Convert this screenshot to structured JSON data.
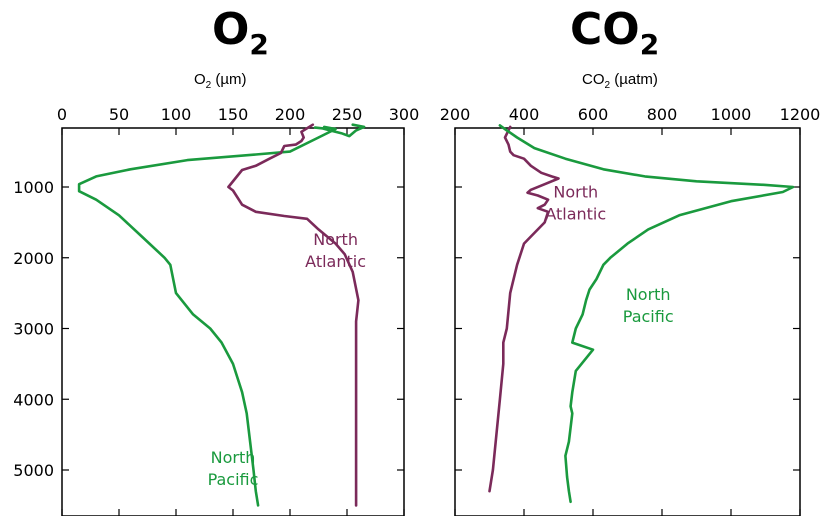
{
  "chart_data": [
    {
      "type": "line",
      "title_main": "O",
      "title_sub": "2",
      "xlabel_main": "O",
      "xlabel_sub": "2",
      "xlabel_rest": " (µm)",
      "xlim": [
        0,
        300
      ],
      "ylim": [
        0,
        5600
      ],
      "x_ticks": [
        0,
        50,
        100,
        150,
        200,
        250,
        300
      ],
      "y_ticks": [
        1000,
        2000,
        3000,
        4000,
        5000
      ],
      "y_inverted": true,
      "x_axis_position": "top",
      "series": [
        {
          "name_lines": [
            "North",
            "Pacific"
          ],
          "color": "#1a9a3e",
          "points": [
            [
              230,
              150
            ],
            [
              240,
              180
            ],
            [
              225,
              300
            ],
            [
              200,
              500
            ],
            [
              170,
              540
            ],
            [
              110,
              620
            ],
            [
              60,
              750
            ],
            [
              30,
              850
            ],
            [
              15,
              960
            ],
            [
              15,
              1060
            ],
            [
              30,
              1180
            ],
            [
              50,
              1400
            ],
            [
              70,
              1700
            ],
            [
              90,
              2000
            ],
            [
              95,
              2100
            ],
            [
              100,
              2500
            ],
            [
              115,
              2800
            ],
            [
              130,
              3000
            ],
            [
              140,
              3200
            ],
            [
              150,
              3500
            ],
            [
              158,
              3900
            ],
            [
              162,
              4200
            ],
            [
              165,
              4600
            ],
            [
              168,
              5000
            ],
            [
              170,
              5300
            ],
            [
              172,
              5500
            ]
          ]
        },
        {
          "name_lines": [
            "North",
            "Atlantic"
          ],
          "color": "#7b2a5a",
          "points": [
            [
              220,
              120
            ],
            [
              210,
              220
            ],
            [
              212,
              300
            ],
            [
              210,
              350
            ],
            [
              205,
              400
            ],
            [
              195,
              420
            ],
            [
              192,
              520
            ],
            [
              182,
              600
            ],
            [
              170,
              700
            ],
            [
              158,
              760
            ],
            [
              146,
              1000
            ],
            [
              150,
              1050
            ],
            [
              158,
              1250
            ],
            [
              170,
              1350
            ],
            [
              195,
              1410
            ],
            [
              215,
              1450
            ],
            [
              225,
              1600
            ],
            [
              240,
              1800
            ],
            [
              248,
              1950
            ],
            [
              255,
              2200
            ],
            [
              260,
              2600
            ],
            [
              258,
              2900
            ],
            [
              258,
              3500
            ],
            [
              258,
              4000
            ],
            [
              258,
              4500
            ],
            [
              258,
              5000
            ],
            [
              258,
              5500
            ]
          ]
        },
        {
          "name_lines": [],
          "color": "#1a9a3e",
          "points": [
            [
              255,
              120
            ],
            [
              265,
              150
            ],
            [
              258,
              200
            ],
            [
              252,
              280
            ],
            [
              245,
              240
            ],
            [
              235,
              200
            ],
            [
              228,
              170
            ],
            [
              222,
              160
            ]
          ]
        }
      ],
      "annotations": [
        {
          "series": "North Pacific",
          "lines": [
            "North",
            "Pacific"
          ],
          "x": 150,
          "y": 4900
        },
        {
          "series": "North Atlantic",
          "lines": [
            "North",
            "Atlantic"
          ],
          "x": 240,
          "y": 1820
        }
      ]
    },
    {
      "type": "line",
      "title_main": "CO",
      "title_sub": "2",
      "xlabel_main": "CO",
      "xlabel_sub": "2",
      "xlabel_rest": " (µatm)",
      "xlim": [
        200,
        1200
      ],
      "ylim": [
        0,
        5600
      ],
      "x_ticks": [
        200,
        400,
        600,
        800,
        1000,
        1200
      ],
      "x_tick_labels": [
        "200",
        "400",
        "600",
        "800",
        "1000",
        "1200"
      ],
      "y_ticks": [
        1000,
        2000,
        3000,
        4000,
        5000
      ],
      "y_inverted": true,
      "x_axis_position": "top",
      "series": [
        {
          "name_lines": [
            "North",
            "Atlantic"
          ],
          "color": "#7b2a5a",
          "points": [
            [
              360,
              150
            ],
            [
              345,
              300
            ],
            [
              355,
              400
            ],
            [
              360,
              500
            ],
            [
              370,
              550
            ],
            [
              400,
              600
            ],
            [
              420,
              700
            ],
            [
              450,
              800
            ],
            [
              480,
              850
            ],
            [
              500,
              880
            ],
            [
              460,
              960
            ],
            [
              420,
              1040
            ],
            [
              410,
              1080
            ],
            [
              440,
              1120
            ],
            [
              470,
              1180
            ],
            [
              460,
              1250
            ],
            [
              440,
              1300
            ],
            [
              470,
              1350
            ],
            [
              460,
              1500
            ],
            [
              420,
              1700
            ],
            [
              400,
              1800
            ],
            [
              380,
              2100
            ],
            [
              360,
              2500
            ],
            [
              350,
              3000
            ],
            [
              340,
              3200
            ],
            [
              340,
              3500
            ],
            [
              330,
              4000
            ],
            [
              320,
              4500
            ],
            [
              310,
              5000
            ],
            [
              300,
              5300
            ]
          ]
        },
        {
          "name_lines": [
            "North",
            "Pacific"
          ],
          "color": "#1a9a3e",
          "points": [
            [
              330,
              130
            ],
            [
              350,
              200
            ],
            [
              380,
              300
            ],
            [
              430,
              450
            ],
            [
              520,
              600
            ],
            [
              630,
              750
            ],
            [
              750,
              850
            ],
            [
              900,
              920
            ],
            [
              1100,
              970
            ],
            [
              1180,
              1000
            ],
            [
              1150,
              1070
            ],
            [
              1000,
              1200
            ],
            [
              850,
              1400
            ],
            [
              760,
              1600
            ],
            [
              700,
              1800
            ],
            [
              650,
              2000
            ],
            [
              630,
              2100
            ],
            [
              610,
              2300
            ],
            [
              590,
              2450
            ],
            [
              580,
              2600
            ],
            [
              570,
              2800
            ],
            [
              550,
              3000
            ],
            [
              540,
              3200
            ],
            [
              600,
              3300
            ],
            [
              550,
              3600
            ],
            [
              540,
              3900
            ],
            [
              535,
              4100
            ],
            [
              540,
              4200
            ],
            [
              535,
              4400
            ],
            [
              530,
              4600
            ],
            [
              520,
              4800
            ],
            [
              525,
              5100
            ],
            [
              530,
              5300
            ],
            [
              535,
              5450
            ]
          ]
        }
      ],
      "annotations": [
        {
          "series": "North Atlantic",
          "lines": [
            "North",
            "Atlantic"
          ],
          "x": 550,
          "y": 1150
        },
        {
          "series": "North Pacific",
          "lines": [
            "North",
            "Pacific"
          ],
          "x": 760,
          "y": 2600
        }
      ]
    }
  ]
}
